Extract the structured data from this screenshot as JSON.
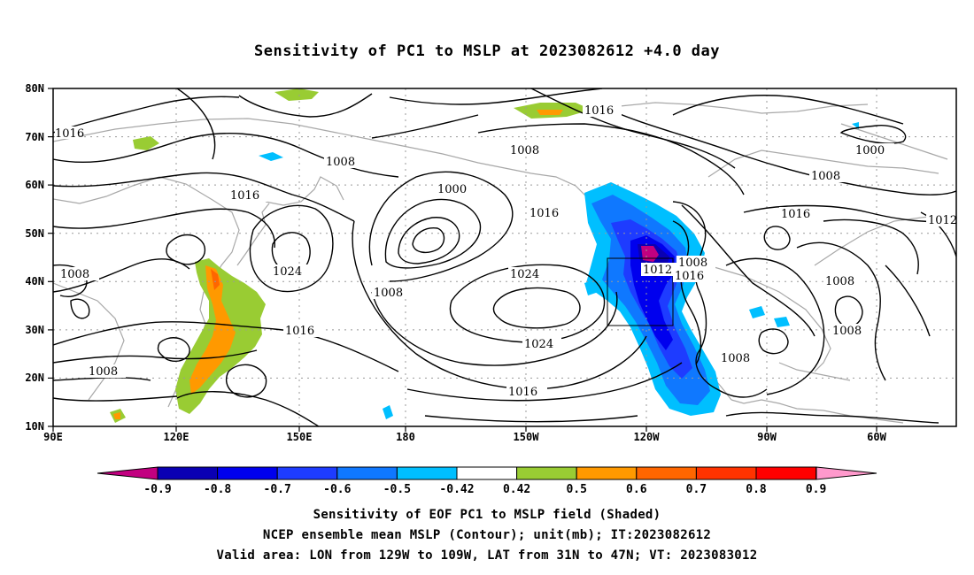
{
  "title": "Sensitivity of PC1 to MSLP at 2023082612 +4.0 day",
  "map": {
    "lat_ticks": [
      "80N",
      "70N",
      "60N",
      "50N",
      "40N",
      "30N",
      "20N",
      "10N"
    ],
    "lon_ticks": [
      "90E",
      "120E",
      "150E",
      "180",
      "150W",
      "120W",
      "90W",
      "60W"
    ],
    "lat_range": [
      10,
      80
    ],
    "lon_range_east": [
      90,
      310
    ],
    "contour_interval_mb": 4,
    "contour_labels": [
      "1016",
      "1008",
      "1016",
      "1024",
      "1008",
      "1016",
      "1008",
      "1000",
      "1016",
      "1008",
      "1024",
      "1024",
      "1016",
      "1016",
      "1012",
      "1008",
      "1016",
      "1008",
      "1000",
      "1008",
      "1016",
      "1008",
      "1008",
      "1012"
    ],
    "box_label": "1012"
  },
  "colorbar": {
    "labels": [
      "-0.9",
      "-0.8",
      "-0.7",
      "-0.6",
      "-0.5",
      "-0.42",
      "0.42",
      "0.5",
      "0.6",
      "0.7",
      "0.8",
      "0.9"
    ],
    "colors": [
      "#0a00b3",
      "#0000ee",
      "#1e3cff",
      "#0f78ff",
      "#00bfff",
      "#ffffff",
      "#99cc33",
      "#ff9900",
      "#ff6600",
      "#ff3300",
      "#ff0000"
    ],
    "low_end_color": "#c20080",
    "high_end_color": "#ff99cc"
  },
  "captions": {
    "line1": "Sensitivity of EOF PC1 to MSLP field (Shaded)",
    "line2": "NCEP ensemble mean MSLP (Contour); unit(mb); IT:2023082612",
    "line3": "Valid area: LON from 129W to 109W, LAT from 31N to 47N; VT: 2023083012"
  }
}
